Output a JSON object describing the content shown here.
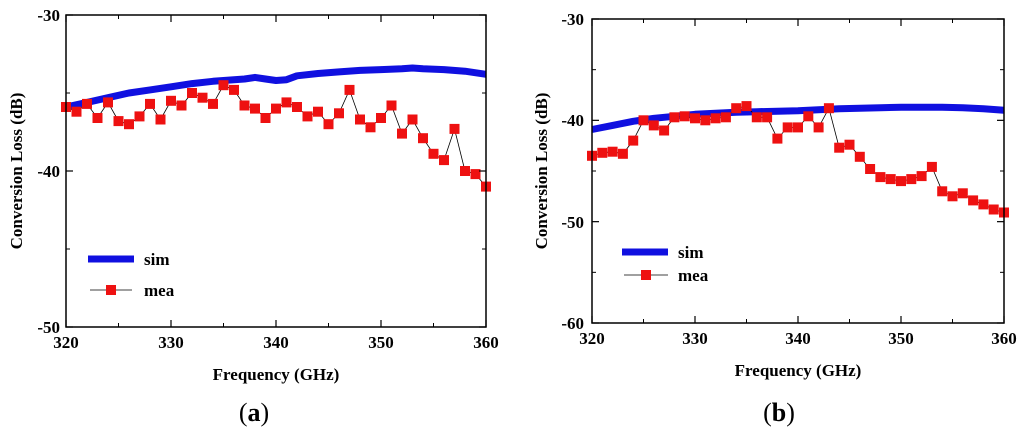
{
  "chart_data": [
    {
      "type": "line",
      "panel_label": "(a)",
      "panel_letter": "a",
      "xlabel": "Frequency (GHz)",
      "ylabel": "Conversion Loss (dB)",
      "xlim": [
        320,
        360
      ],
      "ylim": [
        -50,
        -30
      ],
      "xticks": [
        320,
        330,
        340,
        350,
        360
      ],
      "yticks": [
        -30,
        -40,
        -50
      ],
      "xtick_labels": [
        "320",
        "330",
        "340",
        "350",
        "360"
      ],
      "ytick_labels": [
        "-30",
        "-40",
        "-50"
      ],
      "legend": {
        "position": "bottom-left",
        "entries": [
          "sim",
          "mea"
        ]
      },
      "series": [
        {
          "name": "sim",
          "color": "#1010e0",
          "style": "thick-line",
          "x": [
            320,
            322,
            324,
            326,
            328,
            330,
            332,
            334,
            336,
            337,
            338,
            339,
            340,
            341,
            342,
            344,
            346,
            348,
            350,
            352,
            353,
            354,
            356,
            358,
            360
          ],
          "y": [
            -35.9,
            -35.6,
            -35.3,
            -35.0,
            -34.8,
            -34.6,
            -34.4,
            -34.25,
            -34.15,
            -34.1,
            -34.0,
            -34.1,
            -34.2,
            -34.15,
            -33.9,
            -33.75,
            -33.65,
            -33.55,
            -33.5,
            -33.45,
            -33.4,
            -33.45,
            -33.5,
            -33.6,
            -33.8
          ]
        },
        {
          "name": "mea",
          "color": "#ee1111",
          "style": "line-square",
          "x": [
            320,
            321,
            322,
            323,
            324,
            325,
            326,
            327,
            328,
            329,
            330,
            331,
            332,
            333,
            334,
            335,
            336,
            337,
            338,
            339,
            340,
            341,
            342,
            343,
            344,
            345,
            346,
            347,
            348,
            349,
            350,
            351,
            352,
            353,
            354,
            355,
            356,
            357,
            358,
            359,
            360
          ],
          "y": [
            -35.9,
            -36.2,
            -35.7,
            -36.6,
            -35.6,
            -36.8,
            -37.0,
            -36.5,
            -35.7,
            -36.7,
            -35.5,
            -35.8,
            -35.0,
            -35.3,
            -35.7,
            -34.5,
            -34.8,
            -35.8,
            -36.0,
            -36.6,
            -36.0,
            -35.6,
            -35.9,
            -36.5,
            -36.2,
            -37.0,
            -36.3,
            -34.8,
            -36.7,
            -37.2,
            -36.6,
            -35.8,
            -37.6,
            -36.7,
            -37.9,
            -38.9,
            -39.3,
            -37.3,
            -40.0,
            -40.2,
            -41.0
          ]
        }
      ]
    },
    {
      "type": "line",
      "panel_label": "(b)",
      "panel_letter": "b",
      "xlabel": "Frequency (GHz)",
      "ylabel": "Conversion Loss (dB)",
      "xlim": [
        320,
        360
      ],
      "ylim": [
        -60,
        -30
      ],
      "xticks": [
        320,
        330,
        340,
        350,
        360
      ],
      "yticks": [
        -30,
        -40,
        -50,
        -60
      ],
      "xtick_labels": [
        "320",
        "330",
        "340",
        "350",
        "360"
      ],
      "ytick_labels": [
        "-30",
        "-40",
        "-50",
        "-60"
      ],
      "legend": {
        "position": "bottom-left",
        "entries": [
          "sim",
          "mea"
        ]
      },
      "series": [
        {
          "name": "sim",
          "color": "#1010e0",
          "style": "thick-line",
          "x": [
            320,
            322,
            324,
            326,
            328,
            330,
            332,
            334,
            336,
            338,
            340,
            342,
            344,
            346,
            348,
            350,
            352,
            354,
            356,
            358,
            360
          ],
          "y": [
            -40.9,
            -40.5,
            -40.1,
            -39.8,
            -39.6,
            -39.4,
            -39.3,
            -39.2,
            -39.15,
            -39.1,
            -39.05,
            -38.95,
            -38.85,
            -38.8,
            -38.75,
            -38.7,
            -38.7,
            -38.7,
            -38.75,
            -38.85,
            -39.0
          ]
        },
        {
          "name": "mea",
          "color": "#ee1111",
          "style": "line-square",
          "x": [
            320,
            321,
            322,
            323,
            324,
            325,
            326,
            327,
            328,
            329,
            330,
            331,
            332,
            333,
            334,
            335,
            336,
            337,
            338,
            339,
            340,
            341,
            342,
            343,
            344,
            345,
            346,
            347,
            348,
            349,
            350,
            351,
            352,
            353,
            354,
            355,
            356,
            357,
            358,
            359,
            360
          ],
          "y": [
            -43.5,
            -43.2,
            -43.1,
            -43.3,
            -42.0,
            -40.0,
            -40.5,
            -41.0,
            -39.7,
            -39.6,
            -39.8,
            -40.0,
            -39.8,
            -39.7,
            -38.8,
            -38.6,
            -39.7,
            -39.7,
            -41.8,
            -40.7,
            -40.7,
            -39.6,
            -40.7,
            -38.8,
            -42.7,
            -42.4,
            -43.6,
            -44.8,
            -45.6,
            -45.8,
            -46.0,
            -45.8,
            -45.5,
            -44.6,
            -47.0,
            -47.5,
            -47.2,
            -47.9,
            -48.3,
            -48.8,
            -49.1
          ]
        }
      ]
    }
  ]
}
